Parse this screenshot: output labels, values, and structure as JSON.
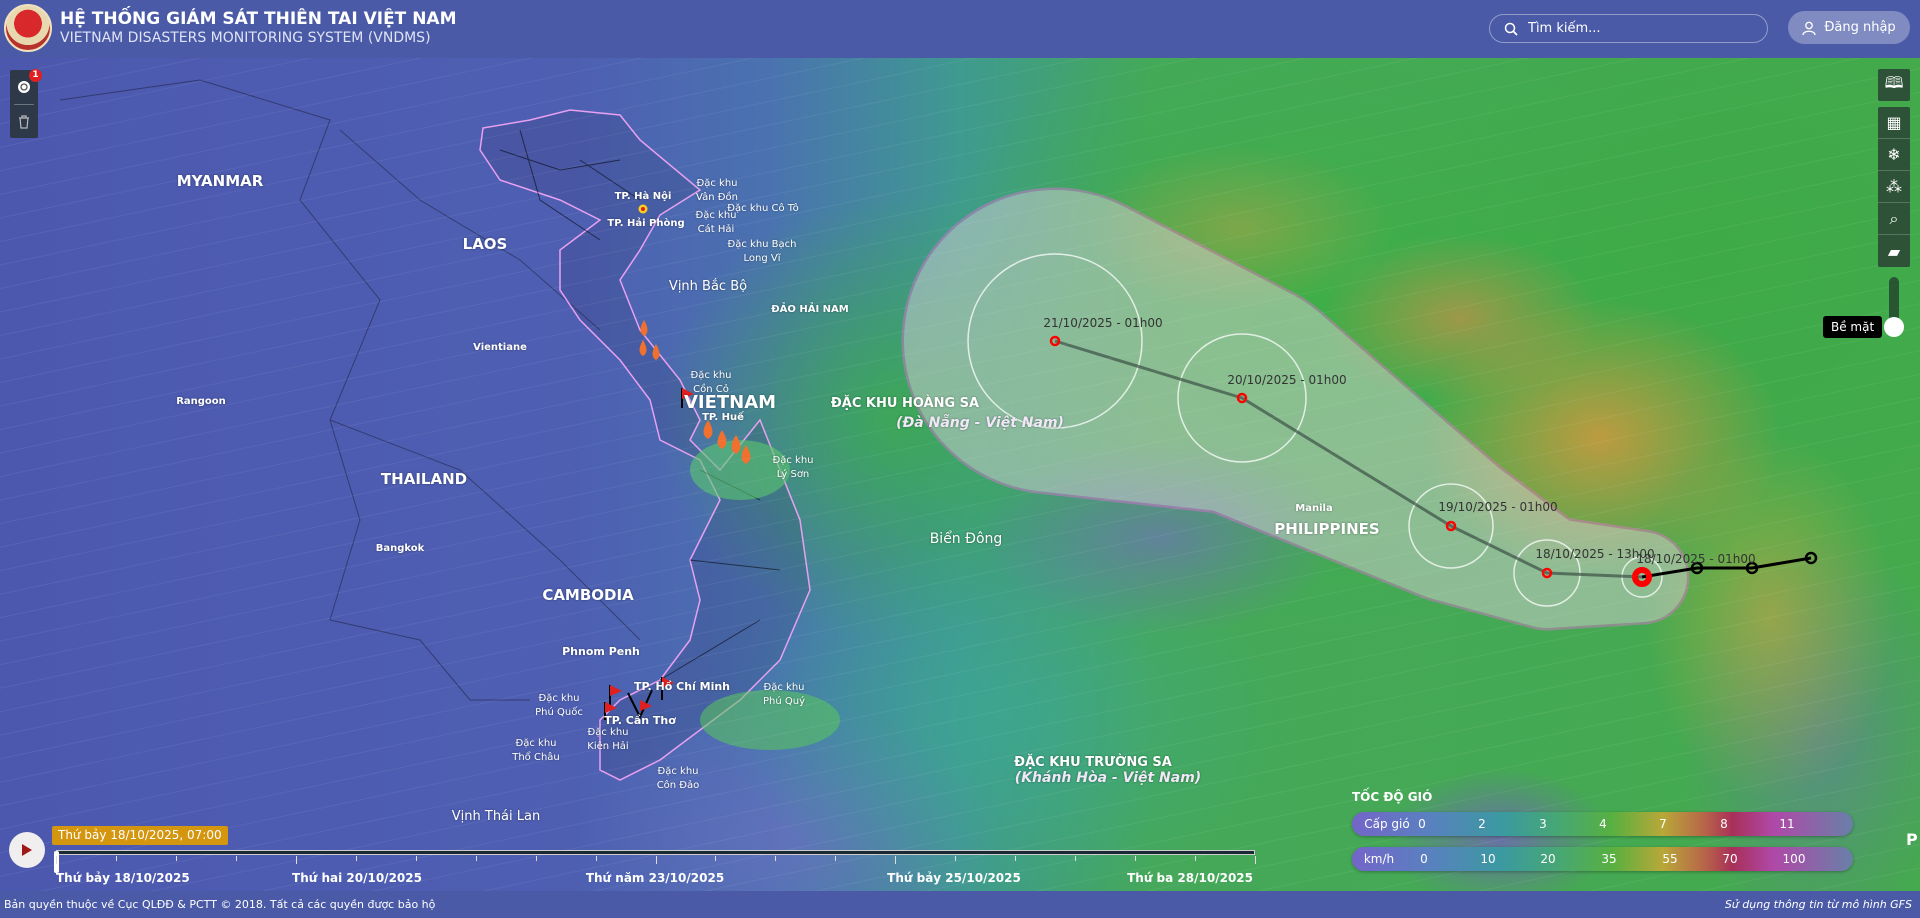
{
  "header": {
    "title": "HỆ THỐNG GIÁM SÁT THIÊN TAI VIỆT NAM",
    "subtitle": "VIETNAM DISASTERS MONITORING SYSTEM (VNDMS)",
    "search_placeholder": "Tìm kiếm...",
    "login_label": "Đăng nhập"
  },
  "left_toolbar": {
    "badge": "1",
    "icons": [
      "layers-alert-icon",
      "trash-icon"
    ]
  },
  "right_toolbar": {
    "icons": [
      "map-book-icon",
      "map-pin-icon",
      "weather-icon",
      "network-icon",
      "zoom-search-icon",
      "notebook-icon"
    ],
    "level_label": "Bề mặt"
  },
  "map_labels": {
    "countries": [
      "MYANMAR",
      "LAOS",
      "THAILAND",
      "CAMBODIA",
      "VIETNAM",
      "PHILIPPINES"
    ],
    "cities": [
      "Vientiane",
      "Rangoon",
      "Bangkok",
      "Phnom Penh",
      "Manila",
      "TP. Hà Nội",
      "TP. Hải Phòng",
      "TP. Huế",
      "TP. Hồ Chí Minh",
      "TP. Cần Thơ"
    ],
    "seas": [
      "Biển Đông",
      "Vịnh Bắc Bộ",
      "Vịnh Thái Lan"
    ],
    "islands": [
      "ĐẢO HẢI NAM",
      "ĐẶC KHU HOÀNG SA",
      "(Đà Nẵng - Việt Nam)",
      "ĐẶC KHU TRƯỜNG SA",
      "(Khánh Hòa - Việt Nam)"
    ],
    "special_zones": [
      "Đặc khu Vân Đồn",
      "Đặc khu Cô Tô",
      "Đặc khu Cát Hải",
      "Đặc khu Bạch Long Vĩ",
      "Đặc khu Cồn Cỏ",
      "Đặc khu Lý Sơn",
      "Đặc khu Phú Quốc",
      "Đặc khu Kiên Hải",
      "Đặc khu Thổ Châu",
      "Đặc khu Côn Đảo",
      "Đặc khu Phú Quý"
    ]
  },
  "storm_track": {
    "forecast": [
      "21/10/2025 - 01h00",
      "20/10/2025 - 01h00",
      "19/10/2025 - 01h00",
      "18/10/2025 - 13h00",
      "18/10/2025 - 01h00"
    ],
    "color": "#ff0000",
    "cone_color": "#f08ad8"
  },
  "legend": {
    "title": "TỐC ĐỘ GIÓ",
    "row1_label": "Cấp gió",
    "row1": [
      "0",
      "2",
      "3",
      "4",
      "7",
      "8",
      "11"
    ],
    "row2_label": "km/h",
    "row2": [
      "0",
      "10",
      "20",
      "35",
      "55",
      "70",
      "100"
    ],
    "edge_text": "P"
  },
  "timeline": {
    "current": "Thứ bảy 18/10/2025, 07:00",
    "progress": 0,
    "labels": [
      "Thứ bảy 18/10/2025",
      "Thứ hai 20/10/2025",
      "Thứ năm 23/10/2025",
      "Thứ bảy 25/10/2025",
      "Thứ ba 28/10/2025"
    ]
  },
  "footer": {
    "copyright": "Bản quyền thuộc về Cục QLĐĐ & PCTT © 2018. Tất cả các quyền được bảo hộ",
    "source": "Sử dụng thông tin từ mô hình GFS"
  }
}
